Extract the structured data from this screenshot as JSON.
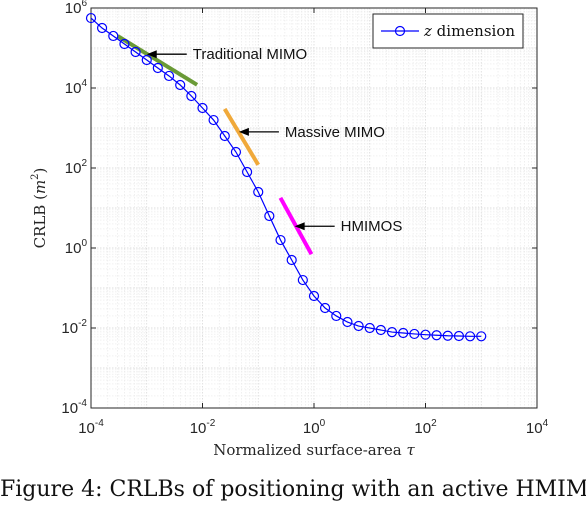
{
  "chart_data": {
    "type": "line",
    "xscale": "log",
    "yscale": "log",
    "xlim": [
      0.0001,
      10000
    ],
    "ylim": [
      0.0001,
      1000000
    ],
    "grid": true,
    "xticks": [
      {
        "base": "10",
        "exp": "-4",
        "value": 0.0001
      },
      {
        "base": "10",
        "exp": "-2",
        "value": 0.01
      },
      {
        "base": "10",
        "exp": "0",
        "value": 1
      },
      {
        "base": "10",
        "exp": "2",
        "value": 100
      },
      {
        "base": "10",
        "exp": "4",
        "value": 10000
      }
    ],
    "yticks": [
      {
        "base": "10",
        "exp": "-4",
        "value": 0.0001
      },
      {
        "base": "10",
        "exp": "-2",
        "value": 0.01
      },
      {
        "base": "10",
        "exp": "0",
        "value": 1
      },
      {
        "base": "10",
        "exp": "2",
        "value": 100
      },
      {
        "base": "10",
        "exp": "4",
        "value": 10000
      },
      {
        "base": "10",
        "exp": "6",
        "value": 1000000
      }
    ],
    "xlabel": {
      "text": "Normalized surface-area ",
      "var": "τ"
    },
    "ylabel": {
      "text": "CRLB (",
      "var": "m",
      "sup": "2",
      "close": ")"
    },
    "legend": {
      "placement": "top-right",
      "var": "z",
      "text": " dimension"
    },
    "series": [
      {
        "legend_entry": "z dimension",
        "color": "#0000ff",
        "marker": "circle",
        "x": [
          0.0001,
          0.000158,
          0.000251,
          0.000398,
          0.000631,
          0.001,
          0.00158,
          0.00251,
          0.00398,
          0.00631,
          0.01,
          0.0158,
          0.0251,
          0.0398,
          0.0631,
          0.1,
          0.158,
          0.251,
          0.398,
          0.631,
          1,
          1.58,
          2.51,
          3.98,
          6.31,
          10,
          15.8,
          25.1,
          39.8,
          63.1,
          100,
          158,
          251,
          398,
          631,
          1000
        ],
        "y": [
          560000,
          316000,
          200000,
          126000,
          79400,
          50100,
          31600,
          20000,
          11900,
          6310,
          3160,
          1580,
          631,
          251,
          79.4,
          25.1,
          6.31,
          1.58,
          0.501,
          0.158,
          0.0631,
          0.0316,
          0.02,
          0.0141,
          0.0112,
          0.01,
          0.0089,
          0.0079,
          0.0075,
          0.0071,
          0.0068,
          0.0066,
          0.0064,
          0.0063,
          0.0062,
          0.0062
        ]
      }
    ],
    "highlights": [
      {
        "label": "Traditional MIMO",
        "color": "#6a9a36",
        "x": [
          0.0003,
          0.008
        ],
        "y": [
          200000,
          12000
        ],
        "arrow_to": [
          0.001,
          70000
        ]
      },
      {
        "label": "Massive MIMO",
        "color": "#f0a93a",
        "x": [
          0.025,
          0.1
        ],
        "y": [
          3000,
          120
        ],
        "arrow_to": [
          0.045,
          800
        ]
      },
      {
        "label": "HMIMOS",
        "color": "#ff00ff",
        "x": [
          0.25,
          0.9
        ],
        "y": [
          18,
          0.7
        ],
        "arrow_to": [
          0.45,
          3.5
        ]
      }
    ]
  },
  "caption": "Figure 4: CRLBs of positioning with an active HMIMOS"
}
